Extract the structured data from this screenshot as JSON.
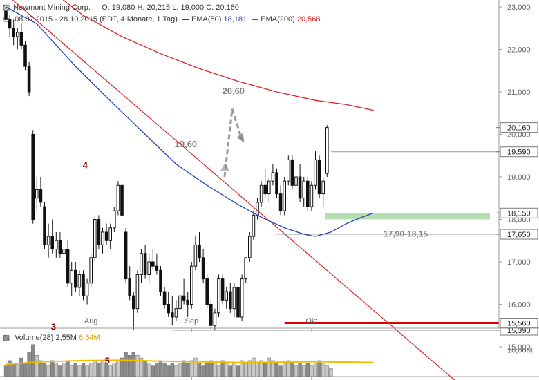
{
  "header": {
    "line1": {
      "name": "Newmont Mining Corp.",
      "open": "O: 19,080",
      "high": "H: 20,215",
      "low": "L: 19,000",
      "close": "C: 20,160"
    },
    "line2": {
      "period": "08.07.2015 - 28.10.2015 (EDT, 4 Monate, 1 Tag)",
      "ema50_label": "EMA(50)",
      "ema50_value": "18,181",
      "ema200_label": "EMA(200)",
      "ema200_value": "20,568"
    }
  },
  "colors": {
    "candle": "#111111",
    "ema50": "#1f3fbf",
    "ema200": "#e02020",
    "trendline": "#e02020",
    "support": "#dd0000",
    "zone": "#a8d8a8",
    "annotation_dark_red": "#8b0000",
    "annotation_gray": "#808080",
    "volume_bar": "#a0a0a0",
    "volume_avg": "#f0c000"
  },
  "chart_data": {
    "type": "candlestick",
    "ylim": [
      14500,
      23000
    ],
    "y_ticks": [
      "23,000",
      "22,000",
      "21,000",
      "20,000",
      "19,000",
      "18,000",
      "17,000",
      "16,000",
      "15,000"
    ],
    "x_ticks": [
      "Aug",
      "Sep",
      "Okt"
    ],
    "candles": [
      {
        "o": 22900,
        "h": 23000,
        "l": 22600,
        "c": 22700
      },
      {
        "o": 22700,
        "h": 22800,
        "l": 22300,
        "c": 22500
      },
      {
        "o": 22500,
        "h": 22700,
        "l": 22100,
        "c": 22300
      },
      {
        "o": 22300,
        "h": 22500,
        "l": 22000,
        "c": 22400
      },
      {
        "o": 22400,
        "h": 22600,
        "l": 22000,
        "c": 22100
      },
      {
        "o": 22100,
        "h": 22200,
        "l": 21500,
        "c": 21600
      },
      {
        "o": 21600,
        "h": 21700,
        "l": 20900,
        "c": 21000
      },
      {
        "o": 20000,
        "h": 20100,
        "l": 17900,
        "c": 18000
      },
      {
        "o": 18500,
        "h": 19000,
        "l": 18200,
        "c": 18700
      },
      {
        "o": 18700,
        "h": 19000,
        "l": 18300,
        "c": 18400
      },
      {
        "o": 18300,
        "h": 18400,
        "l": 17300,
        "c": 17400
      },
      {
        "o": 17400,
        "h": 17900,
        "l": 17100,
        "c": 17600
      },
      {
        "o": 17600,
        "h": 18000,
        "l": 17200,
        "c": 17300
      },
      {
        "o": 17300,
        "h": 17700,
        "l": 17100,
        "c": 17500
      },
      {
        "o": 17500,
        "h": 17700,
        "l": 17100,
        "c": 17200
      },
      {
        "o": 17200,
        "h": 17600,
        "l": 16900,
        "c": 17300
      },
      {
        "o": 17300,
        "h": 17500,
        "l": 16400,
        "c": 16500
      },
      {
        "o": 16500,
        "h": 17000,
        "l": 16200,
        "c": 16800
      },
      {
        "o": 16800,
        "h": 17000,
        "l": 16300,
        "c": 16400
      },
      {
        "o": 16400,
        "h": 16800,
        "l": 16200,
        "c": 16700
      },
      {
        "o": 16700,
        "h": 16800,
        "l": 16100,
        "c": 16200
      },
      {
        "o": 16200,
        "h": 16600,
        "l": 16000,
        "c": 16500
      },
      {
        "o": 16500,
        "h": 17200,
        "l": 16400,
        "c": 17100
      },
      {
        "o": 17100,
        "h": 18100,
        "l": 17000,
        "c": 18000
      },
      {
        "o": 18000,
        "h": 18100,
        "l": 17300,
        "c": 17400
      },
      {
        "o": 17400,
        "h": 17800,
        "l": 17200,
        "c": 17700
      },
      {
        "o": 17700,
        "h": 17900,
        "l": 17400,
        "c": 17500
      },
      {
        "o": 17500,
        "h": 17900,
        "l": 17300,
        "c": 17800
      },
      {
        "o": 17800,
        "h": 18300,
        "l": 17700,
        "c": 18200
      },
      {
        "o": 18200,
        "h": 18900,
        "l": 18100,
        "c": 18800
      },
      {
        "o": 18800,
        "h": 18900,
        "l": 18000,
        "c": 18100
      },
      {
        "o": 17700,
        "h": 17800,
        "l": 16500,
        "c": 16600
      },
      {
        "o": 16600,
        "h": 16900,
        "l": 16100,
        "c": 16200
      },
      {
        "o": 16200,
        "h": 16300,
        "l": 15400,
        "c": 15900
      },
      {
        "o": 15900,
        "h": 16800,
        "l": 15800,
        "c": 16700
      },
      {
        "o": 16700,
        "h": 17300,
        "l": 16500,
        "c": 17200
      },
      {
        "o": 17200,
        "h": 17400,
        "l": 16600,
        "c": 16700
      },
      {
        "o": 16700,
        "h": 17200,
        "l": 16500,
        "c": 17000
      },
      {
        "o": 17000,
        "h": 17300,
        "l": 16800,
        "c": 16900
      },
      {
        "o": 16900,
        "h": 17200,
        "l": 16700,
        "c": 16800
      },
      {
        "o": 16800,
        "h": 16900,
        "l": 16200,
        "c": 16300
      },
      {
        "o": 16300,
        "h": 16400,
        "l": 15900,
        "c": 16000
      },
      {
        "o": 16000,
        "h": 16300,
        "l": 15700,
        "c": 15800
      },
      {
        "o": 15800,
        "h": 16200,
        "l": 15500,
        "c": 15700
      },
      {
        "o": 15700,
        "h": 16100,
        "l": 15600,
        "c": 15900
      },
      {
        "o": 15900,
        "h": 16300,
        "l": 15400,
        "c": 16200
      },
      {
        "o": 16200,
        "h": 16600,
        "l": 16000,
        "c": 16100
      },
      {
        "o": 16100,
        "h": 16300,
        "l": 15700,
        "c": 16000
      },
      {
        "o": 16000,
        "h": 17000,
        "l": 15900,
        "c": 16900
      },
      {
        "o": 16900,
        "h": 17600,
        "l": 16800,
        "c": 17400
      },
      {
        "o": 17400,
        "h": 17700,
        "l": 17000,
        "c": 17100
      },
      {
        "o": 17100,
        "h": 17300,
        "l": 16500,
        "c": 16600
      },
      {
        "o": 16600,
        "h": 16700,
        "l": 15900,
        "c": 16000
      },
      {
        "o": 16000,
        "h": 16100,
        "l": 15400,
        "c": 15500
      },
      {
        "o": 15500,
        "h": 15900,
        "l": 15400,
        "c": 15800
      },
      {
        "o": 15800,
        "h": 16700,
        "l": 15700,
        "c": 16600
      },
      {
        "o": 16600,
        "h": 16700,
        "l": 16000,
        "c": 16100
      },
      {
        "o": 16100,
        "h": 16400,
        "l": 15900,
        "c": 16300
      },
      {
        "o": 16300,
        "h": 16500,
        "l": 15800,
        "c": 15900
      },
      {
        "o": 15900,
        "h": 16500,
        "l": 15700,
        "c": 16400
      },
      {
        "o": 16400,
        "h": 16600,
        "l": 15600,
        "c": 15700
      },
      {
        "o": 15700,
        "h": 16700,
        "l": 15600,
        "c": 16600
      },
      {
        "o": 16600,
        "h": 17100,
        "l": 16500,
        "c": 17100
      },
      {
        "o": 17100,
        "h": 17700,
        "l": 17000,
        "c": 17600
      },
      {
        "o": 17600,
        "h": 18200,
        "l": 17500,
        "c": 18100
      },
      {
        "o": 18100,
        "h": 18500,
        "l": 18000,
        "c": 18400
      },
      {
        "o": 18400,
        "h": 18900,
        "l": 18300,
        "c": 18800
      },
      {
        "o": 18800,
        "h": 19200,
        "l": 18500,
        "c": 18600
      },
      {
        "o": 18600,
        "h": 19000,
        "l": 18400,
        "c": 18900
      },
      {
        "o": 18900,
        "h": 19300,
        "l": 18800,
        "c": 19100
      },
      {
        "o": 19100,
        "h": 19200,
        "l": 18500,
        "c": 18600
      },
      {
        "o": 18600,
        "h": 18800,
        "l": 18100,
        "c": 18200
      },
      {
        "o": 18200,
        "h": 19000,
        "l": 18100,
        "c": 18900
      },
      {
        "o": 18900,
        "h": 19500,
        "l": 18800,
        "c": 19400
      },
      {
        "o": 19400,
        "h": 19500,
        "l": 18700,
        "c": 18800
      },
      {
        "o": 18800,
        "h": 19200,
        "l": 18600,
        "c": 19000
      },
      {
        "o": 19000,
        "h": 19300,
        "l": 18400,
        "c": 18500
      },
      {
        "o": 18500,
        "h": 19000,
        "l": 18300,
        "c": 18900
      },
      {
        "o": 18900,
        "h": 19000,
        "l": 18200,
        "c": 18300
      },
      {
        "o": 18300,
        "h": 18900,
        "l": 18200,
        "c": 18800
      },
      {
        "o": 18800,
        "h": 19600,
        "l": 18700,
        "c": 19400
      },
      {
        "o": 19400,
        "h": 19500,
        "l": 18500,
        "c": 18600
      },
      {
        "o": 18600,
        "h": 19000,
        "l": 18300,
        "c": 18900
      },
      {
        "o": 19080,
        "h": 20215,
        "l": 19000,
        "c": 20160
      }
    ],
    "ema50": [
      [
        0,
        23000
      ],
      [
        8,
        22600
      ],
      [
        18,
        21600
      ],
      [
        28,
        20700
      ],
      [
        36,
        20000
      ],
      [
        44,
        19300
      ],
      [
        52,
        18800
      ],
      [
        60,
        18350
      ],
      [
        66,
        18050
      ],
      [
        72,
        17800
      ],
      [
        77,
        17650
      ],
      [
        80,
        17600
      ],
      [
        84,
        17700
      ],
      [
        88,
        17900
      ],
      [
        92,
        18050
      ],
      [
        95,
        18150
      ]
    ],
    "ema200": [
      [
        0,
        24200
      ],
      [
        10,
        23500
      ],
      [
        20,
        22800
      ],
      [
        30,
        22300
      ],
      [
        40,
        21900
      ],
      [
        50,
        21550
      ],
      [
        60,
        21250
      ],
      [
        70,
        21000
      ],
      [
        80,
        20800
      ],
      [
        88,
        20700
      ],
      [
        95,
        20568
      ]
    ],
    "trendline": [
      [
        0,
        23300
      ],
      [
        120,
        13900
      ]
    ],
    "support_line": {
      "value": 15560,
      "label": "15,560"
    },
    "level_lines": [
      {
        "value": 19590,
        "label": "19,590"
      },
      {
        "value": 17650,
        "label": "17,650"
      },
      {
        "value": 15390,
        "label": "15,390"
      }
    ],
    "zone": {
      "from": 18000,
      "to": 18150,
      "label": "18,150",
      "zone_label": "17,90-18,15"
    },
    "last_price": {
      "value": 20160,
      "label": "20,160"
    },
    "annotations": [
      {
        "text": "4",
        "x": 20.5,
        "y": 19200
      },
      {
        "text": "3",
        "x": 12.3,
        "y": 15400
      },
      {
        "text": "5",
        "x": 26.2,
        "y": 14600
      },
      {
        "text": "19,60",
        "x": 46.5,
        "y": 19700
      },
      {
        "text": "20,60",
        "x": 58.8,
        "y": 20950
      }
    ],
    "forecast_path": [
      [
        56.5,
        19000
      ],
      [
        58.5,
        20600
      ],
      [
        60.9,
        19900
      ]
    ],
    "volume": {
      "label": "Volume(28)",
      "value1": "2,55M",
      "value2": "6,64M",
      "tick": "10,00M",
      "ylim": [
        0,
        13
      ],
      "bars": [
        4,
        6,
        5,
        5,
        7,
        5,
        9,
        12,
        8,
        6,
        5,
        4,
        6,
        5,
        4,
        5,
        6,
        4,
        5,
        4,
        5,
        4,
        5,
        6,
        5,
        6,
        5,
        4,
        5,
        6,
        7,
        9,
        8,
        9,
        8,
        7,
        6,
        5,
        4,
        5,
        6,
        5,
        4,
        5,
        4,
        5,
        6,
        5,
        6,
        7,
        5,
        4,
        5,
        6,
        5,
        4,
        6,
        5,
        4,
        5,
        4,
        6,
        5,
        6,
        7,
        5,
        6,
        5,
        7,
        6,
        5,
        4,
        5,
        6,
        5,
        4,
        5,
        4,
        5,
        4,
        5,
        6,
        5,
        4,
        3
      ],
      "avg": [
        [
          0,
          4.6
        ],
        [
          10,
          5.6
        ],
        [
          20,
          6.0
        ],
        [
          30,
          6.2
        ],
        [
          40,
          5.8
        ],
        [
          50,
          5.5
        ],
        [
          60,
          5.3
        ],
        [
          70,
          5.4
        ],
        [
          80,
          5.6
        ],
        [
          95,
          5.3
        ]
      ]
    }
  }
}
